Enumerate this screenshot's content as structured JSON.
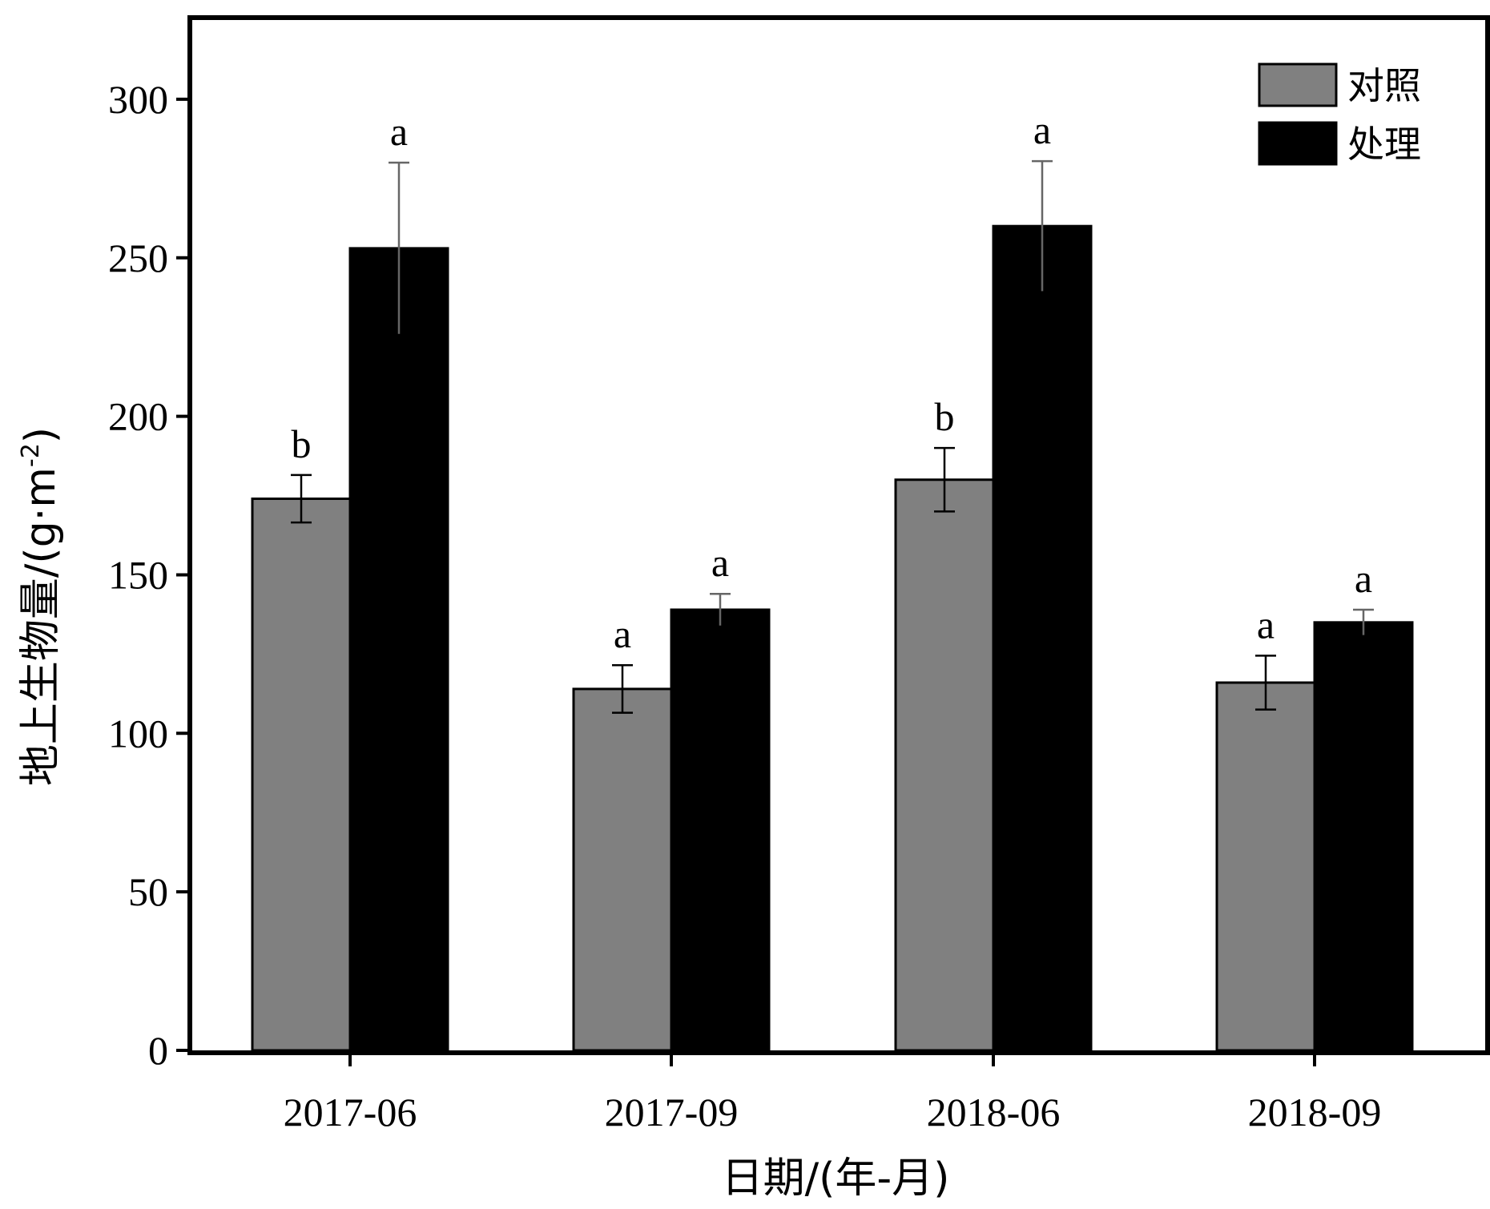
{
  "chart_data": {
    "type": "bar",
    "categories": [
      "2017-06",
      "2017-09",
      "2018-06",
      "2018-09"
    ],
    "series": [
      {
        "name": "对照",
        "color": "#808080",
        "values": [
          174,
          114,
          180,
          116
        ],
        "errors": [
          7.5,
          7.5,
          10,
          8.5
        ],
        "sig": [
          "b",
          "a",
          "b",
          "a"
        ]
      },
      {
        "name": "处理",
        "color": "#000000",
        "values": [
          253,
          139,
          260,
          135
        ],
        "errors": [
          27,
          5,
          20.5,
          4
        ],
        "sig": [
          "a",
          "a",
          "a",
          "a"
        ]
      }
    ],
    "xlabel": "日期/(年-月)",
    "ylabel_main": "地上生物量/(g·m",
    "ylabel_sup": "-2",
    "ylabel_close": ")",
    "ylim": [
      0,
      325
    ],
    "yticks": [
      "0",
      "50",
      "100",
      "150",
      "200",
      "250",
      "300"
    ],
    "grid": false,
    "legend_position": "top-right"
  }
}
